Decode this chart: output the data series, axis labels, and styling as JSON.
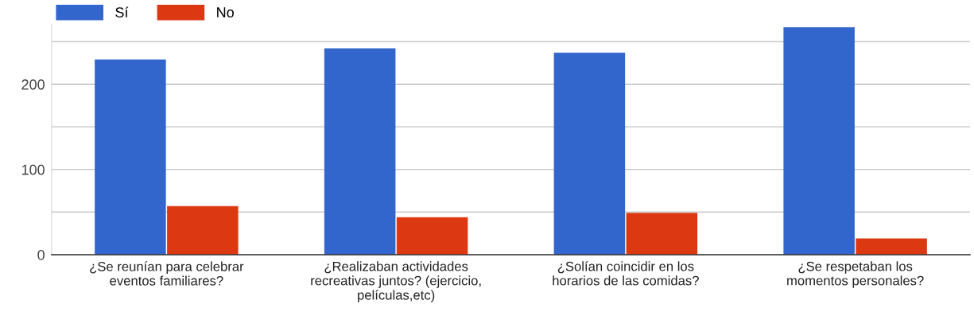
{
  "chart_data": {
    "type": "bar",
    "categories": [
      "¿Se reunían para celebrar\neventos familiares?",
      "¿Realizaban actividades\nrecreativas juntos? (ejercicio,\npelículas,etc)",
      "¿Solían coincidir en los\nhorarios de las comidas?",
      "¿Se respetaban los\nmomentos personales?"
    ],
    "series": [
      {
        "name": "Sí",
        "color": "#3366cc",
        "values": [
          229,
          242,
          237,
          267
        ]
      },
      {
        "name": "No",
        "color": "#dc3912",
        "values": [
          57,
          44,
          49,
          19
        ]
      }
    ],
    "ylim": [
      0,
      270
    ],
    "yticks": [
      0,
      {
        "value": 50,
        "label": null
      },
      100,
      {
        "value": 150,
        "label": null
      },
      200,
      {
        "value": 250,
        "label": null
      }
    ],
    "grid": "y",
    "legend": "top left"
  }
}
